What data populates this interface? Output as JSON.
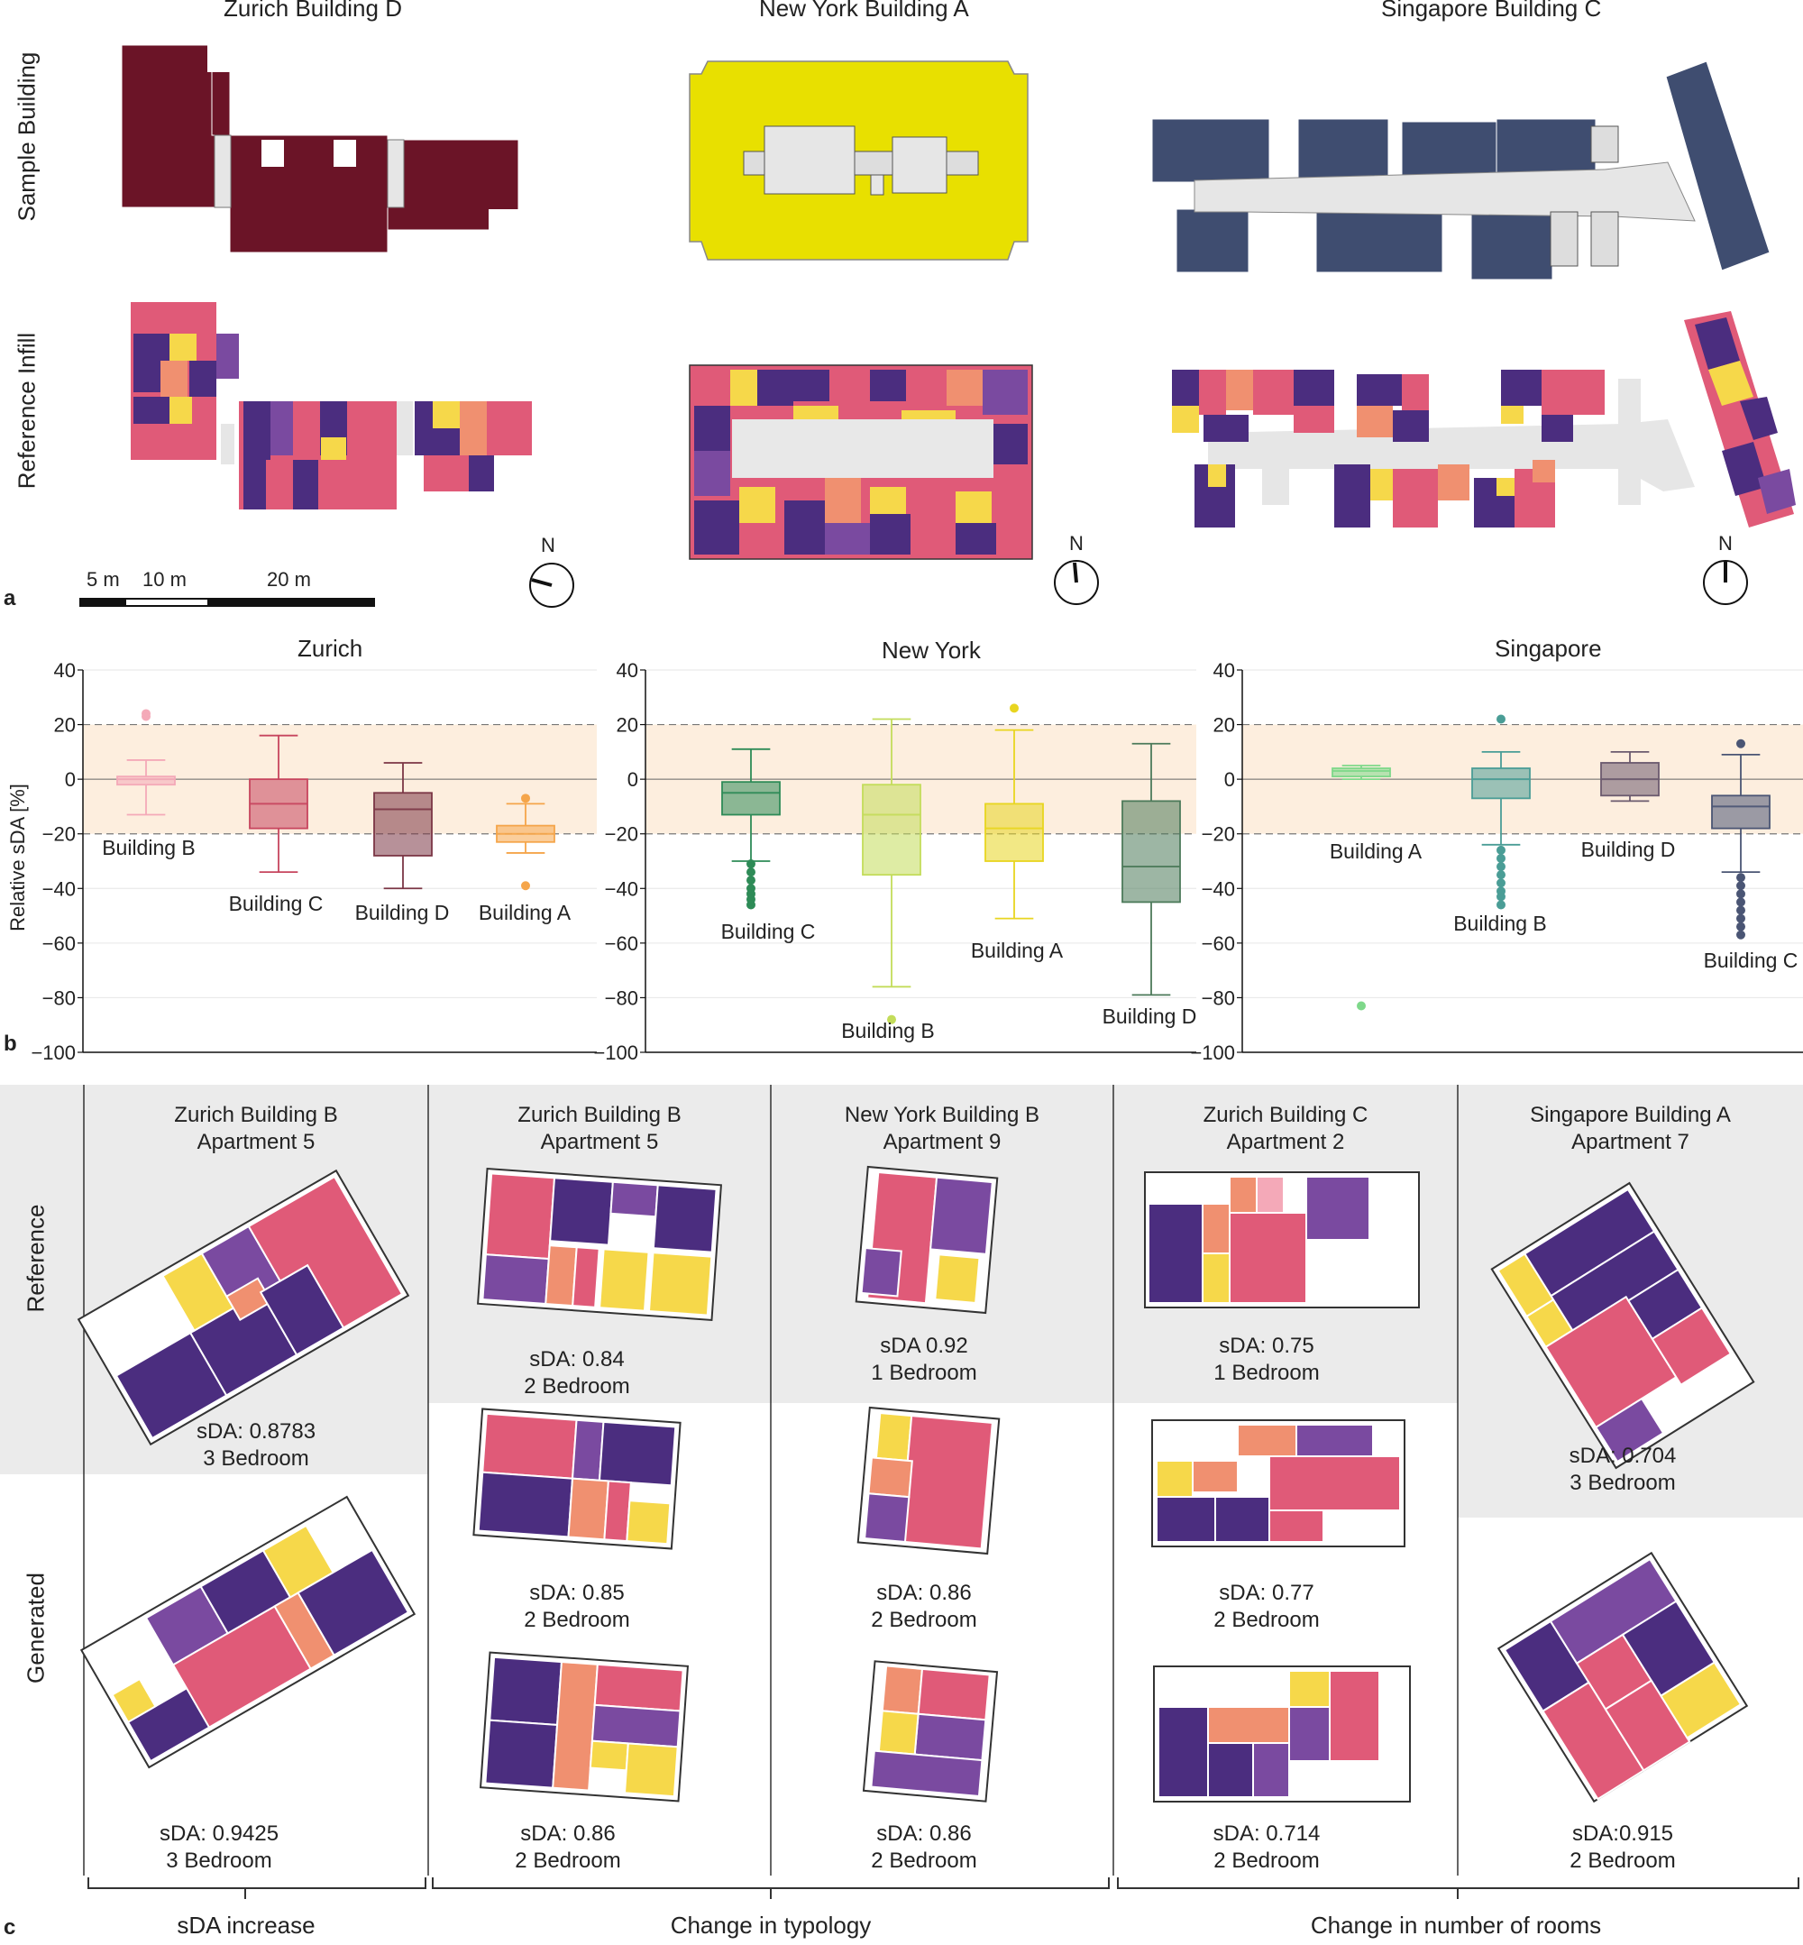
{
  "panel_a": {
    "letter": "a",
    "columns": [
      "Zurich Building D",
      "New York Building A",
      "Singapore Building C"
    ],
    "row_labels": [
      "Sample Building",
      "Reference Infill"
    ],
    "scale_bar": [
      "5 m",
      "10 m",
      "20 m"
    ],
    "north": "N",
    "sample_colors": {
      "zurich": "#6b1427",
      "newyork": "#e8e000",
      "singapore": "#3f4d70"
    }
  },
  "panel_b": {
    "letter": "b",
    "ylabel": "Relative sDA [%]",
    "yticks": [
      "40",
      "20",
      "0",
      "−20",
      "−40",
      "−60",
      "−80",
      "−100"
    ],
    "charts": [
      {
        "title": "Zurich",
        "labels": [
          "Building B",
          "Building C",
          "Building D",
          "Building A"
        ]
      },
      {
        "title": "New York",
        "labels": [
          "Building C",
          "Building B",
          "Building A",
          "Building D"
        ]
      },
      {
        "title": "Singapore",
        "labels": [
          "Building A",
          "Building B",
          "Building D",
          "Building C"
        ]
      }
    ]
  },
  "chart_data": [
    {
      "type": "box",
      "title": "Zurich",
      "ylabel": "Relative sDA [%]",
      "ylim": [
        -100,
        40
      ],
      "reference_band": [
        -20,
        20
      ],
      "categories": [
        "Building B",
        "Building C",
        "Building D",
        "Building A"
      ],
      "boxes": [
        {
          "name": "Building B",
          "whisker_low": -13,
          "q1": -2,
          "median": 0,
          "q3": 1,
          "whisker_high": 7,
          "outliers": [
            23,
            24
          ],
          "color": "#f4a9b8"
        },
        {
          "name": "Building C",
          "whisker_low": -34,
          "q1": -18,
          "median": -9,
          "q3": 0,
          "whisker_high": 16,
          "outliers": [],
          "color": "#c7455e"
        },
        {
          "name": "Building D",
          "whisker_low": -40,
          "q1": -28,
          "median": -11,
          "q3": -5,
          "whisker_high": 6,
          "outliers": [],
          "color": "#7b3645"
        },
        {
          "name": "Building A",
          "whisker_low": -27,
          "q1": -23,
          "median": -20,
          "q3": -17,
          "whisker_high": -9,
          "outliers": [
            -7,
            -39
          ],
          "color": "#f5a54a"
        }
      ]
    },
    {
      "type": "box",
      "title": "New York",
      "ylim": [
        -100,
        40
      ],
      "reference_band": [
        -20,
        20
      ],
      "categories": [
        "Building C",
        "Building B",
        "Building A",
        "Building D"
      ],
      "boxes": [
        {
          "name": "Building C",
          "whisker_low": -30,
          "q1": -13,
          "median": -5,
          "q3": -1,
          "whisker_high": 11,
          "outliers": [
            -31,
            -34,
            -37,
            -40,
            -42,
            -44,
            -46
          ],
          "color": "#2e8b57"
        },
        {
          "name": "Building B",
          "whisker_low": -76,
          "q1": -35,
          "median": -13,
          "q3": -2,
          "whisker_high": 22,
          "outliers": [
            -88
          ],
          "color": "#c3dc5a"
        },
        {
          "name": "Building A",
          "whisker_low": -51,
          "q1": -30,
          "median": -18,
          "q3": -9,
          "whisker_high": 18,
          "outliers": [
            26
          ],
          "color": "#e8d520"
        },
        {
          "name": "Building D",
          "whisker_low": -79,
          "q1": -45,
          "median": -32,
          "q3": -8,
          "whisker_high": 13,
          "outliers": [],
          "color": "#4c7a5a"
        }
      ]
    },
    {
      "type": "box",
      "title": "Singapore",
      "ylim": [
        -100,
        40
      ],
      "reference_band": [
        -20,
        20
      ],
      "categories": [
        "Building A",
        "Building B",
        "Building D",
        "Building C"
      ],
      "boxes": [
        {
          "name": "Building A",
          "whisker_low": 0,
          "q1": 1,
          "median": 3,
          "q3": 4,
          "whisker_high": 5,
          "outliers": [
            -83
          ],
          "color": "#7ed88a"
        },
        {
          "name": "Building B",
          "whisker_low": -24,
          "q1": -7,
          "median": 0,
          "q3": 4,
          "whisker_high": 10,
          "outliers": [
            22,
            -26,
            -29,
            -32,
            -35,
            -38,
            -41,
            -43,
            -46
          ],
          "color": "#4a9d96"
        },
        {
          "name": "Building D",
          "whisker_low": -8,
          "q1": -6,
          "median": 0,
          "q3": 6,
          "whisker_high": 10,
          "outliers": [],
          "color": "#6b5a6e"
        },
        {
          "name": "Building C",
          "whisker_low": -34,
          "q1": -18,
          "median": -10,
          "q3": -6,
          "whisker_high": 9,
          "outliers": [
            13,
            -36,
            -39,
            -42,
            -45,
            -48,
            -51,
            -54,
            -57
          ],
          "color": "#4a5574"
        }
      ]
    }
  ],
  "panel_c": {
    "letter": "c",
    "row_labels": [
      "Reference",
      "Generated"
    ],
    "columns": [
      {
        "title1": "Zurich Building B",
        "title2": "Apartment 5",
        "ref": [
          "sDA: 0.8783",
          "3 Bedroom"
        ],
        "gen": [
          [
            "sDA: 0.9425",
            "3 Bedroom"
          ]
        ]
      },
      {
        "title1": "Zurich Building B",
        "title2": "Apartment 5",
        "ref": [
          "sDA: 0.84",
          "2 Bedroom"
        ],
        "gen": [
          [
            "sDA: 0.85",
            "2 Bedroom"
          ],
          [
            "sDA: 0.86",
            "2 Bedroom"
          ]
        ]
      },
      {
        "title1": "New York Building B",
        "title2": "Apartment 9",
        "ref": [
          "sDA 0.92",
          "1 Bedroom"
        ],
        "gen": [
          [
            "sDA: 0.86",
            "2 Bedroom"
          ],
          [
            "sDA: 0.86",
            "2 Bedroom"
          ]
        ]
      },
      {
        "title1": "Zurich Building C",
        "title2": "Apartment 2",
        "ref": [
          "sDA: 0.75",
          "1 Bedroom"
        ],
        "gen": [
          [
            "sDA: 0.77",
            "2 Bedroom"
          ],
          [
            "sDA: 0.714",
            "2 Bedroom"
          ]
        ]
      },
      {
        "title1": "Singapore Building A",
        "title2": "Apartment 7",
        "ref": [
          "sDA: 0.704",
          "3 Bedroom"
        ],
        "gen": [
          [
            "sDA:0.915",
            "2 Bedroom"
          ]
        ]
      }
    ],
    "groups": [
      "sDA increase",
      "Change in typology",
      "Change in number of rooms"
    ]
  }
}
